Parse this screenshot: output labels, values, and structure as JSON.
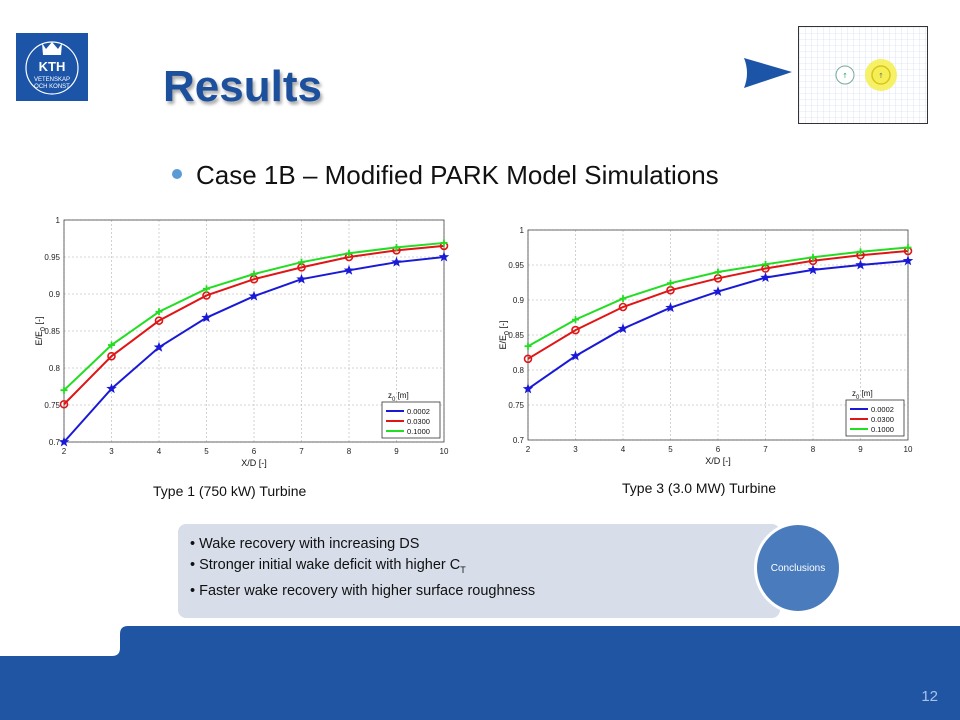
{
  "slide": {
    "logo_text": [
      "KTH",
      "VETENSKAP",
      "OCH KONST"
    ],
    "title": "Results",
    "bullet": "Case 1B – Modified PARK Model Simulations",
    "captions": [
      "Type 1 (750 kW) Turbine",
      "Type 3 (3.0 MW) Turbine"
    ],
    "conclusions": {
      "items": [
        "Wake recovery with increasing DS",
        "Stronger initial wake deficit with higher C",
        "Faster wake recovery with higher surface roughness"
      ],
      "ct_subscript": "T",
      "label": "Conclusions"
    },
    "page_number": "12"
  },
  "colors": {
    "brand": "#1c55a8",
    "title": "#1c4f9c",
    "bullet": "#5b9bd5",
    "series": [
      "#1a1ad6",
      "#e01515",
      "#22dd22"
    ]
  },
  "chart_data": [
    {
      "type": "line",
      "x": [
        2,
        3,
        4,
        5,
        6,
        7,
        8,
        9,
        10
      ],
      "xlabel": "X/D [-]",
      "ylabel": "E/E",
      "ylabel_sub": "0",
      "ylabel_unit": "[-]",
      "xlim": [
        2,
        10
      ],
      "ylim": [
        0.7,
        1
      ],
      "xticks": [
        "2",
        "3",
        "4",
        "5",
        "6",
        "7",
        "8",
        "9",
        "10"
      ],
      "yticks": [
        "0.7",
        "0.75",
        "0.8",
        "0.85",
        "0.9",
        "0.95",
        "1"
      ],
      "grid": true,
      "legend_title": "z",
      "legend_title_sub": "0",
      "legend_title_unit": "[m]",
      "legend_position": "bottom-right",
      "series": [
        {
          "name": "0.0002",
          "marker": "star",
          "values": [
            0.7,
            0.772,
            0.828,
            0.868,
            0.897,
            0.92,
            0.932,
            0.943,
            0.95
          ]
        },
        {
          "name": "0.0300",
          "marker": "circle",
          "values": [
            0.751,
            0.816,
            0.864,
            0.898,
            0.92,
            0.936,
            0.95,
            0.959,
            0.965
          ]
        },
        {
          "name": "0.1000",
          "marker": "plus",
          "values": [
            0.77,
            0.831,
            0.876,
            0.907,
            0.927,
            0.943,
            0.955,
            0.963,
            0.969
          ]
        }
      ]
    },
    {
      "type": "line",
      "x": [
        2,
        3,
        4,
        5,
        6,
        7,
        8,
        9,
        10
      ],
      "xlabel": "X/D [-]",
      "ylabel": "E/E",
      "ylabel_sub": "0",
      "ylabel_unit": "[-]",
      "xlim": [
        2,
        10
      ],
      "ylim": [
        0.7,
        1
      ],
      "xticks": [
        "2",
        "3",
        "4",
        "5",
        "6",
        "7",
        "8",
        "9",
        "10"
      ],
      "yticks": [
        "0.7",
        "0.75",
        "0.8",
        "0.85",
        "0.9",
        "0.95",
        "1"
      ],
      "grid": true,
      "legend_title": "z",
      "legend_title_sub": "0",
      "legend_title_unit": "[m]",
      "legend_position": "bottom-right",
      "series": [
        {
          "name": "0.0002",
          "marker": "star",
          "values": [
            0.773,
            0.82,
            0.859,
            0.889,
            0.912,
            0.932,
            0.943,
            0.95,
            0.956
          ]
        },
        {
          "name": "0.0300",
          "marker": "circle",
          "values": [
            0.816,
            0.857,
            0.89,
            0.914,
            0.931,
            0.945,
            0.956,
            0.964,
            0.97
          ]
        },
        {
          "name": "0.1000",
          "marker": "plus",
          "values": [
            0.834,
            0.872,
            0.902,
            0.924,
            0.94,
            0.951,
            0.961,
            0.969,
            0.975
          ]
        }
      ]
    }
  ]
}
